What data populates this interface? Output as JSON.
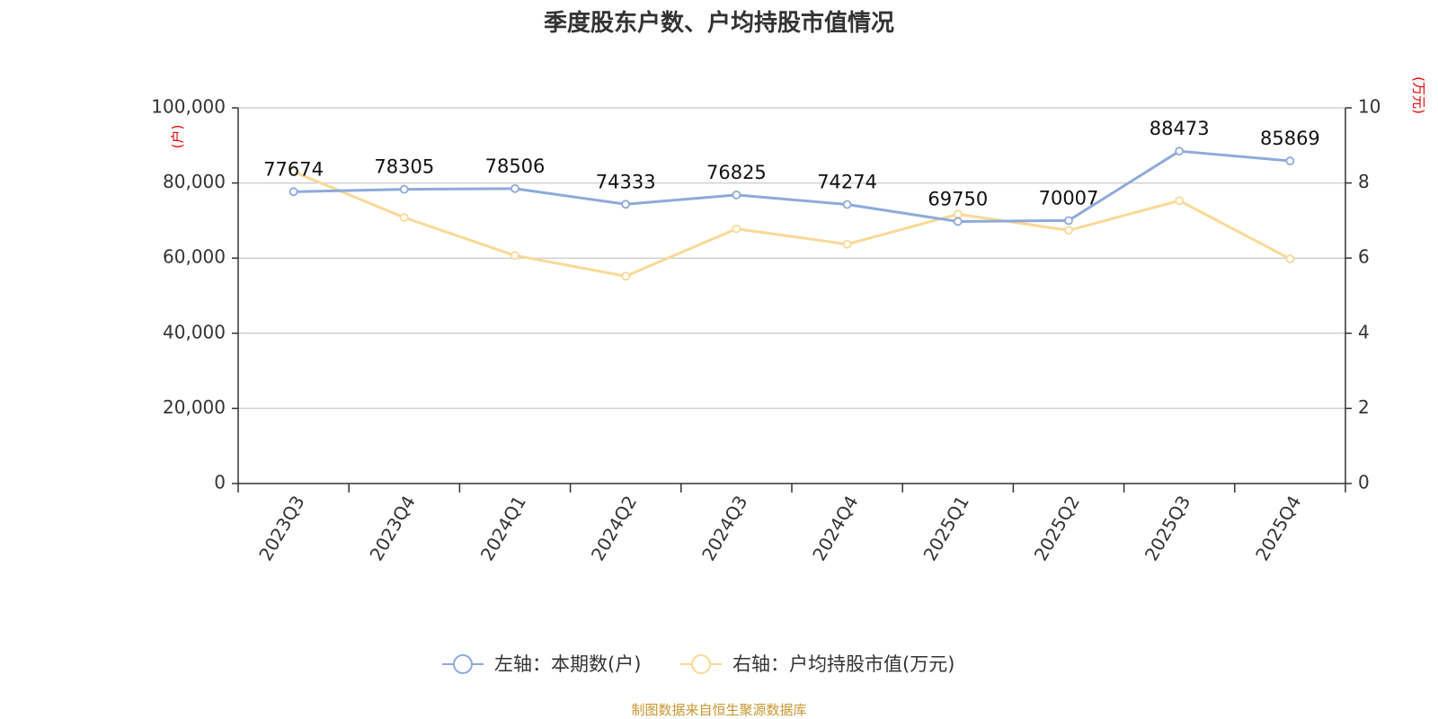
{
  "chart_data": {
    "type": "line",
    "title": "季度股东户数、户均持股市值情况",
    "categories": [
      "2023Q3",
      "2023Q4",
      "2024Q1",
      "2024Q2",
      "2024Q3",
      "2024Q4",
      "2025Q1",
      "2025Q2",
      "2025Q3",
      "2025Q4"
    ],
    "left_axis": {
      "unit_label": "(户)",
      "ylim": [
        0,
        100000
      ],
      "ticks": [
        0,
        20000,
        40000,
        60000,
        80000,
        100000
      ],
      "tick_labels": [
        "0",
        "20,000",
        "40,000",
        "60,000",
        "80,000",
        "100,000"
      ]
    },
    "right_axis": {
      "unit_label": "(万元)",
      "ylim": [
        0,
        10
      ],
      "ticks": [
        0,
        2,
        4,
        6,
        8,
        10
      ],
      "tick_labels": [
        "0",
        "2",
        "4",
        "6",
        "8",
        "10"
      ]
    },
    "series": [
      {
        "name": "左轴：本期数(户)",
        "axis": "left",
        "color": "#8eaadb",
        "values": [
          77674,
          78305,
          78506,
          74333,
          76825,
          74274,
          69750,
          70007,
          88473,
          85869
        ],
        "data_labels": [
          "77674",
          "78305",
          "78506",
          "74333",
          "76825",
          "74274",
          "69750",
          "70007",
          "88473",
          "85869"
        ]
      },
      {
        "name": "右轴：户均持股市值(万元)",
        "axis": "right",
        "color": "#fad996",
        "values": [
          8.3,
          7.08,
          6.07,
          5.52,
          6.78,
          6.37,
          7.17,
          6.74,
          7.53,
          5.98
        ]
      }
    ],
    "grid": true,
    "legend_position": "bottom-center"
  },
  "footer": {
    "source": "制图数据来自恒生聚源数据库"
  }
}
